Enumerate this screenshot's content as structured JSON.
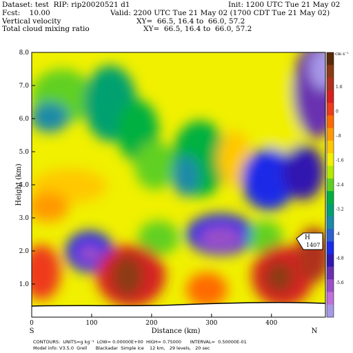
{
  "header": {
    "dataset_line": "Dataset: test  RIP: rip20020521 d1",
    "init_line": "Init: 1200 UTC Tue 21 May 02",
    "fcst_line": "Fcst:    10.00",
    "valid_line": "Valid: 2200 UTC Tue 21 May 02 (1700 CDT Tue 21 May 02)",
    "field1_name": "Vertical velocity",
    "field1_xy": "XY=  66.5, 16.4 to  66.0, 57.2",
    "field2_name": "Total cloud mixing ratio",
    "field2_xy": "XY=  66.5, 16.4 to  66.0, 57.2"
  },
  "footer": {
    "contours_line": "CONTOURS:  UNITS=g kg⁻¹  LOW= 0.00000E+00  HIGH= 0.75000      INTERVAL=  0.50000E-01",
    "model_line": "Model info: V3.5.0  Grell      Blackadar  Simple ice    12 km,   29 levels,   20 sec"
  },
  "chart_data": {
    "type": "heatmap",
    "title": "",
    "xlabel": "Distance (km)",
    "ylabel": "Height (km)",
    "xlim": [
      0,
      490
    ],
    "ylim": [
      0,
      8
    ],
    "x_ticks": [
      0,
      100,
      200,
      300,
      400
    ],
    "x_tick_labels": [
      "0",
      "100",
      "200",
      "300",
      "400"
    ],
    "y_ticks": [
      1,
      2,
      3,
      4,
      5,
      6,
      7,
      8
    ],
    "y_tick_labels": [
      "1.0",
      "2.0",
      "3.0",
      "4.0",
      "5.0",
      "6.0",
      "7.0",
      "8.0"
    ],
    "endpoint_labels": {
      "left": "S",
      "right": "N"
    },
    "colorbar": {
      "units": "cm s⁻¹",
      "labels": [
        "1.6",
        "0",
        "-.8",
        "-1.6",
        "-2.4",
        "-3.2",
        "-4",
        "-4.8",
        "-5.6"
      ],
      "colors": [
        "#5a2a0a",
        "#8b3a14",
        "#b0301e",
        "#d62020",
        "#ee3a1e",
        "#ff6a00",
        "#ff9a00",
        "#ffc800",
        "#f0f000",
        "#b8e800",
        "#60d020",
        "#00b040",
        "#00a070",
        "#1a8aa8",
        "#2a60d0",
        "#1a2ae8",
        "#3018b0",
        "#6a30b0",
        "#9a50c8",
        "#c070d8",
        "#a898e8"
      ]
    },
    "annotations": [
      {
        "text": "H",
        "x": 470,
        "y": 2.6
      },
      {
        "text": "1407",
        "x": 470,
        "y": 2.3
      }
    ],
    "grid": "off",
    "legend": "colorbar-right"
  }
}
